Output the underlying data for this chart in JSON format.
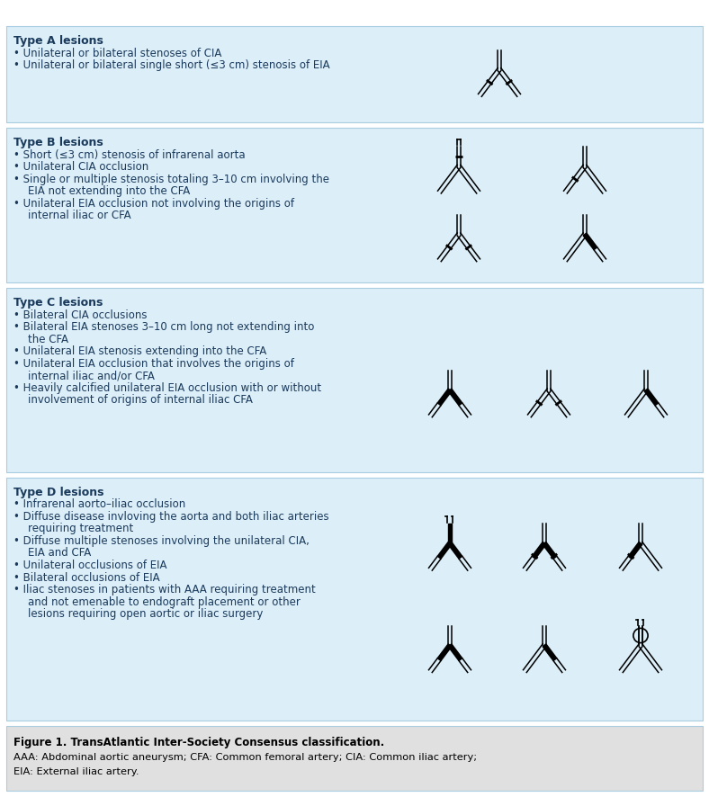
{
  "title": "Figure 1. TransAtlantic Inter-Society Consensus classification.",
  "caption_line2": "AAA: Abdominal aortic aneurysm; CFA: Common femoral artery; CIA: Common iliac artery;",
  "caption_line3": "EIA: External iliac artery.",
  "bg_color": "#ffffff",
  "panel_bg": "#dceef8",
  "caption_bg": "#e0e0e0",
  "border_color": "#a8cce0",
  "text_color": "#1a3a5c",
  "sections": [
    {
      "type_label": "Type A lesions",
      "bullets": [
        "Unilateral or bilateral stenoses of CIA",
        "Unilateral or bilateral single short (≤3 cm) stenosis of EIA"
      ]
    },
    {
      "type_label": "Type B lesions",
      "bullets": [
        "Short (≤3 cm) stenosis of infrarenal aorta",
        "Unilateral CIA occlusion",
        "Single or multiple stenosis totaling 3–10 cm involving the",
        "  EIA not extending into the CFA",
        "Unilateral EIA occlusion not involving the origins of",
        "  internal iliac or CFA"
      ]
    },
    {
      "type_label": "Type C lesions",
      "bullets": [
        "Bilateral CIA occlusions",
        "Bilateral EIA stenoses 3–10 cm long not extending into",
        "  the CFA",
        "Unilateral EIA stenosis extending into the CFA",
        "Unilateral EIA occlusion that involves the origins of",
        "  internal iliac and/or CFA",
        "Heavily calcified unilateral EIA occlusion with or without",
        "  involvement of origins of internal iliac CFA"
      ]
    },
    {
      "type_label": "Type D lesions",
      "bullets": [
        "Infrarenal aorto–iliac occlusion",
        "Diffuse disease invloving the aorta and both iliac arteries",
        "  requiring treatment",
        "Diffuse multiple stenoses involving the unilateral CIA,",
        "  EIA and CFA",
        "Unilateral occlusions of EIA",
        "Bilateral occlusions of EIA",
        "Iliac stenoses in patients with AAA requiring treatment",
        "  and not emenable to endograft placement or other",
        "  lesions requiring open aortic or iliac surgery"
      ]
    }
  ]
}
